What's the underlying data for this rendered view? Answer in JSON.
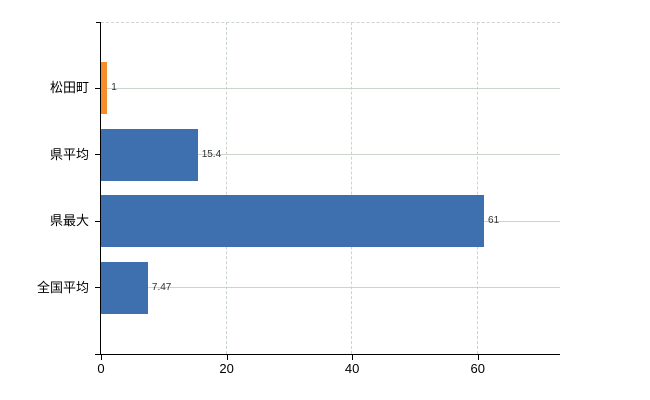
{
  "chart_data": {
    "type": "bar",
    "orientation": "horizontal",
    "categories": [
      "松田町",
      "県平均",
      "県最大",
      "全国平均"
    ],
    "values": [
      1,
      15.4,
      61,
      7.47
    ],
    "value_labels": [
      "1",
      "15.4",
      "61",
      "7.47"
    ],
    "bar_colors": [
      "#f58c2e",
      "#3e6fae",
      "#3e6fae",
      "#3e6fae"
    ],
    "highlight_color": "#f58c2e",
    "base_color": "#3e6fae",
    "xlim": [
      0,
      73.1
    ],
    "x_ticks": [
      0,
      20,
      40,
      60
    ],
    "x_tick_labels": [
      "0",
      "20",
      "40",
      "60"
    ],
    "grid": true,
    "gridline_color": "#cbd5cb",
    "axis_color": "#000000",
    "value_label_color": "#333333",
    "tick_label_color": "#000000",
    "legend": "none",
    "background_color": "#ffffff"
  }
}
